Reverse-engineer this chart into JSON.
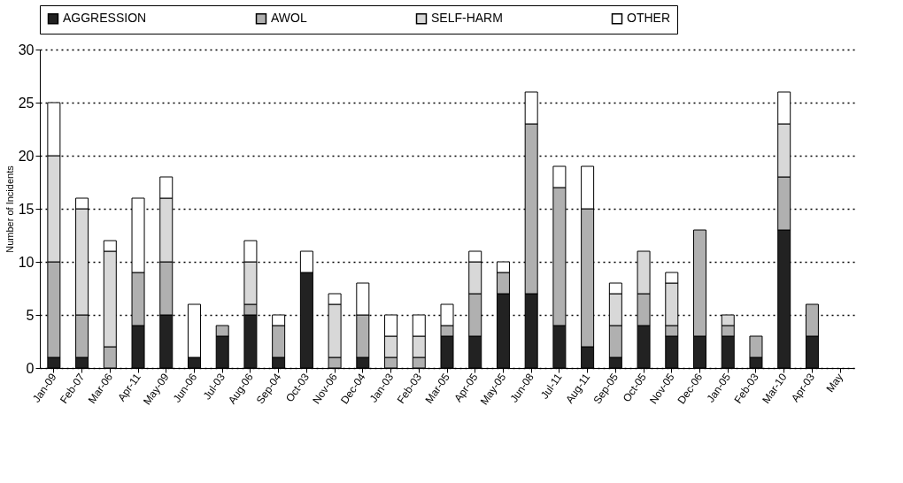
{
  "chart_data": {
    "type": "bar",
    "stacked": true,
    "ylabel": "Number of Incidents",
    "categories": [
      "Jan-09",
      "Feb-07",
      "Mar-06",
      "Apr-11",
      "May-09",
      "Jun-06",
      "Jul-03",
      "Aug-06",
      "Sep-04",
      "Oct-03",
      "Nov-06",
      "Dec-04",
      "Jan-03",
      "Feb-03",
      "Mar-05",
      "Apr-05",
      "May-05",
      "Jun-08",
      "Jul-11",
      "Aug-11",
      "Sep-05",
      "Oct-05",
      "Nov-05",
      "Dec-06",
      "Jan-05",
      "Feb-03",
      "Mar-10",
      "Apr-03",
      "May"
    ],
    "series": [
      {
        "name": "AGGRESSION",
        "color": "#222222",
        "values": [
          1,
          1,
          0,
          4,
          5,
          1,
          3,
          5,
          1,
          9,
          0,
          1,
          0,
          0,
          3,
          3,
          7,
          7,
          4,
          2,
          1,
          4,
          3,
          3,
          3,
          1,
          13,
          3,
          0
        ]
      },
      {
        "name": "AWOL",
        "color": "#b0b0b0",
        "values": [
          9,
          4,
          2,
          5,
          5,
          0,
          1,
          1,
          3,
          0,
          1,
          4,
          1,
          1,
          1,
          4,
          2,
          16,
          13,
          13,
          3,
          3,
          1,
          10,
          1,
          2,
          5,
          3,
          0
        ]
      },
      {
        "name": "SELF-HARM",
        "color": "#d8d8d8",
        "values": [
          10,
          10,
          9,
          0,
          6,
          0,
          0,
          4,
          0,
          0,
          5,
          0,
          2,
          2,
          0,
          3,
          0,
          0,
          0,
          0,
          3,
          4,
          4,
          0,
          1,
          0,
          5,
          0,
          0
        ]
      },
      {
        "name": "OTHER",
        "color": "#ffffff",
        "values": [
          5,
          1,
          1,
          7,
          2,
          5,
          0,
          2,
          1,
          2,
          1,
          3,
          2,
          2,
          2,
          1,
          1,
          3,
          2,
          4,
          1,
          0,
          1,
          0,
          0,
          0,
          3,
          0,
          0
        ]
      }
    ],
    "ylim": [
      0,
      30
    ],
    "yticks": [
      0,
      5,
      10,
      15,
      20,
      25,
      30
    ],
    "grid": "y",
    "legend": "top"
  }
}
